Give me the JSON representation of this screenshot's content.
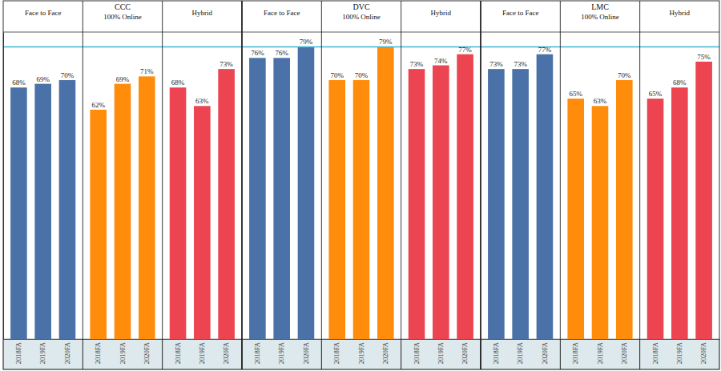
{
  "chart_data": {
    "type": "bar",
    "categories": [
      "2018FA",
      "2019FA",
      "2020FA"
    ],
    "groups": [
      {
        "name": "CCC",
        "series": [
          {
            "name": "Face to Face",
            "color": "#4a72a8",
            "values": [
              68,
              69,
              70
            ],
            "value_labels": [
              "68%",
              "69%",
              "70%"
            ]
          },
          {
            "name": "100% Online",
            "color": "#ff8c0a",
            "values": [
              62,
              69,
              71
            ],
            "value_labels": [
              "62%",
              "69%",
              "71%"
            ]
          },
          {
            "name": "Hybrid",
            "color": "#ec4450",
            "values": [
              68,
              63,
              73
            ],
            "value_labels": [
              "68%",
              "63%",
              "73%"
            ]
          }
        ]
      },
      {
        "name": "DVC",
        "series": [
          {
            "name": "Face to Face",
            "color": "#4a72a8",
            "values": [
              76,
              76,
              79
            ],
            "value_labels": [
              "76%",
              "76%",
              "79%"
            ]
          },
          {
            "name": "100% Online",
            "color": "#ff8c0a",
            "values": [
              70,
              70,
              79
            ],
            "value_labels": [
              "70%",
              "70%",
              "79%"
            ]
          },
          {
            "name": "Hybrid",
            "color": "#ec4450",
            "values": [
              73,
              74,
              77
            ],
            "value_labels": [
              "73%",
              "74%",
              "77%"
            ]
          }
        ]
      },
      {
        "name": "LMC",
        "series": [
          {
            "name": "Face to Face",
            "color": "#4a72a8",
            "values": [
              73,
              73,
              77
            ],
            "value_labels": [
              "73%",
              "73%",
              "77%"
            ]
          },
          {
            "name": "100% Online",
            "color": "#ff8c0a",
            "values": [
              65,
              63,
              70
            ],
            "value_labels": [
              "65%",
              "63%",
              "70%"
            ]
          },
          {
            "name": "Hybrid",
            "color": "#ec4450",
            "values": [
              65,
              68,
              75
            ],
            "value_labels": [
              "65%",
              "68%",
              "75%"
            ]
          }
        ]
      }
    ],
    "reference_line": 79,
    "ylim": [
      0,
      83
    ],
    "yticks": [],
    "tick_labels": "x",
    "data_labels": true,
    "grid": false
  }
}
